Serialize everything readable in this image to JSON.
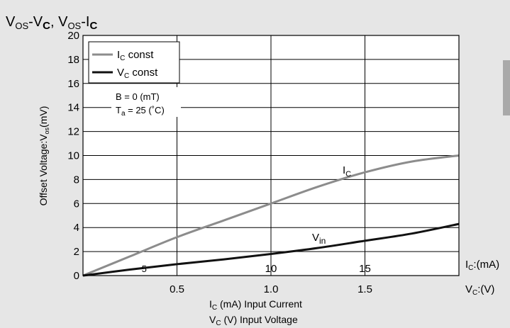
{
  "chart_data": {
    "type": "line",
    "title": "VOS-VC, VOS-IC",
    "ylabel": "Offset Voltage:Vos(mV)",
    "xlabel_lines": [
      "IC (mA)  Input Current",
      "VC (V)  Input Voltage"
    ],
    "x_unit_labels": [
      "IC:(mA)",
      "VC:(V)"
    ],
    "xlim": [
      0,
      2.0
    ],
    "ylim": [
      0,
      20
    ],
    "y_ticks": [
      0,
      2,
      4,
      6,
      8,
      10,
      12,
      14,
      16,
      18,
      20
    ],
    "x_ticks_ic": [
      0.5,
      1.0,
      1.5
    ],
    "x_ticks_vc": [
      5,
      10,
      15
    ],
    "grid": true,
    "legend_position": "top-left",
    "series": [
      {
        "name": "IC const",
        "curve_label": "IC",
        "color": "#8c8c8c",
        "x": [
          0,
          0.25,
          0.5,
          0.75,
          1.0,
          1.25,
          1.5,
          1.75,
          2.0
        ],
        "values": [
          0,
          1.6,
          3.2,
          4.6,
          6.0,
          7.4,
          8.6,
          9.5,
          10.0
        ]
      },
      {
        "name": "VC const",
        "curve_label": "Vin",
        "color": "#111111",
        "x": [
          0,
          0.25,
          0.5,
          0.75,
          1.0,
          1.25,
          1.5,
          1.75,
          2.0
        ],
        "values": [
          0,
          0.5,
          0.95,
          1.35,
          1.8,
          2.3,
          2.9,
          3.5,
          4.3
        ]
      }
    ],
    "annotations": [
      "B  =  0 (mT)",
      "Ta = 25 (˚C)"
    ]
  }
}
